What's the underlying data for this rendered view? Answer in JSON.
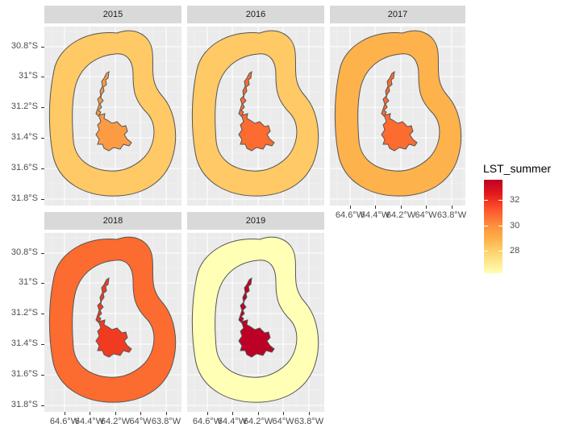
{
  "facets": [
    {
      "year": "2015",
      "ring_color": "#ffc966",
      "city_color": "#fd9a44"
    },
    {
      "year": "2016",
      "ring_color": "#ffc966",
      "city_color": "#fc6b30"
    },
    {
      "year": "2017",
      "ring_color": "#feb24c",
      "city_color": "#fc6b30"
    },
    {
      "year": "2018",
      "ring_color": "#fc6b30",
      "city_color": "#f03b20"
    },
    {
      "year": "2019",
      "ring_color": "#ffffb5",
      "city_color": "#bd0026"
    }
  ],
  "y_axis": {
    "ticks": [
      "30.8°S",
      "31°S",
      "31.2°S",
      "31.4°S",
      "31.6°S",
      "31.8°S"
    ]
  },
  "x_axis": {
    "ticks": [
      "64.6°W",
      "64.4°W",
      "64.2°W",
      "64°W",
      "63.8°W"
    ]
  },
  "legend": {
    "title": "LST_summer",
    "labels": [
      "32",
      "30",
      "28"
    ],
    "range": [
      26.5,
      33.5
    ],
    "colors": [
      "#ffffb2",
      "#fed976",
      "#feb24c",
      "#fd8d3c",
      "#fc4e2a",
      "#e31a1c",
      "#bd0026"
    ]
  }
}
